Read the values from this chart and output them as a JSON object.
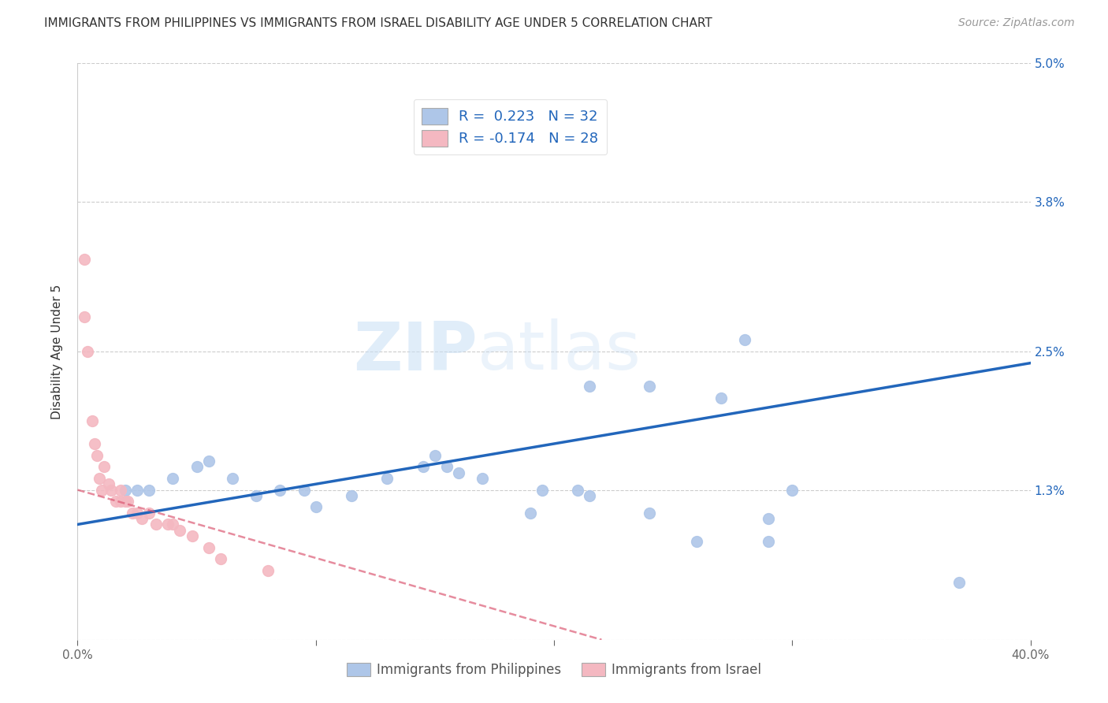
{
  "title": "IMMIGRANTS FROM PHILIPPINES VS IMMIGRANTS FROM ISRAEL DISABILITY AGE UNDER 5 CORRELATION CHART",
  "source": "Source: ZipAtlas.com",
  "ylabel": "Disability Age Under 5",
  "xlim": [
    0.0,
    0.4
  ],
  "ylim": [
    0.0,
    0.05
  ],
  "xticks": [
    0.0,
    0.1,
    0.2,
    0.3,
    0.4
  ],
  "xticklabels": [
    "0.0%",
    "",
    "",
    "",
    "40.0%"
  ],
  "yticks": [
    0.0,
    0.013,
    0.025,
    0.038,
    0.05
  ],
  "yticklabels": [
    "",
    "1.3%",
    "2.5%",
    "3.8%",
    "5.0%"
  ],
  "watermark_zip": "ZIP",
  "watermark_atlas": "atlas",
  "phi_color": "#aec6e8",
  "isr_color": "#f4b8c1",
  "phi_line_color": "#2266bb",
  "isr_line_color": "#d94f6b",
  "legend_color": "#2266bb",
  "phi_scatter_x": [
    0.02,
    0.025,
    0.03,
    0.04,
    0.05,
    0.055,
    0.065,
    0.075,
    0.085,
    0.095,
    0.1,
    0.115,
    0.13,
    0.145,
    0.15,
    0.155,
    0.16,
    0.17,
    0.19,
    0.195,
    0.21,
    0.215,
    0.24,
    0.27,
    0.28,
    0.29,
    0.3,
    0.215,
    0.24,
    0.37,
    0.29,
    0.26
  ],
  "phi_scatter_y": [
    0.013,
    0.013,
    0.013,
    0.014,
    0.015,
    0.0155,
    0.014,
    0.0125,
    0.013,
    0.013,
    0.0115,
    0.0125,
    0.014,
    0.015,
    0.016,
    0.015,
    0.0145,
    0.014,
    0.011,
    0.013,
    0.013,
    0.0125,
    0.011,
    0.021,
    0.026,
    0.0105,
    0.013,
    0.022,
    0.022,
    0.005,
    0.0085,
    0.0085
  ],
  "isr_scatter_x": [
    0.003,
    0.003,
    0.004,
    0.006,
    0.007,
    0.008,
    0.009,
    0.01,
    0.011,
    0.013,
    0.014,
    0.016,
    0.018,
    0.018,
    0.02,
    0.021,
    0.023,
    0.025,
    0.027,
    0.03,
    0.033,
    0.038,
    0.04,
    0.043,
    0.048,
    0.055,
    0.06,
    0.08
  ],
  "isr_scatter_y": [
    0.033,
    0.028,
    0.025,
    0.019,
    0.017,
    0.016,
    0.014,
    0.013,
    0.015,
    0.0135,
    0.013,
    0.012,
    0.012,
    0.013,
    0.012,
    0.012,
    0.011,
    0.011,
    0.0105,
    0.011,
    0.01,
    0.01,
    0.01,
    0.0095,
    0.009,
    0.008,
    0.007,
    0.006
  ],
  "phi_trend_x": [
    0.0,
    0.4
  ],
  "phi_trend_y": [
    0.01,
    0.024
  ],
  "isr_trend_x": [
    0.0,
    0.22
  ],
  "isr_trend_y": [
    0.013,
    0.0
  ],
  "background_color": "#ffffff",
  "grid_color": "#cccccc",
  "title_fontsize": 11,
  "axis_label_fontsize": 11,
  "tick_fontsize": 11,
  "legend_fontsize": 13,
  "scatter_size": 100
}
